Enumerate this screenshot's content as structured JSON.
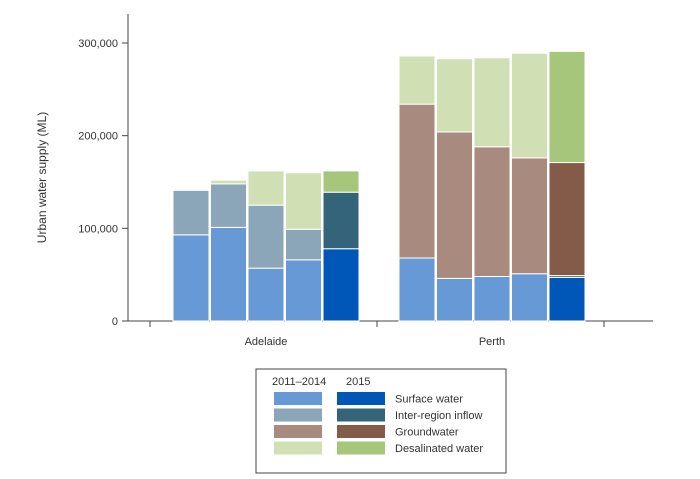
{
  "chart_data": {
    "type": "bar",
    "stacked": true,
    "ylabel": "Urban water supply (ML)",
    "ylim": [
      0,
      300000
    ],
    "yticks": [
      0,
      100000,
      200000,
      300000
    ],
    "ytick_labels": [
      "0",
      "100,000",
      "200,000",
      "300,000"
    ],
    "groups": [
      {
        "label": "Adelaide",
        "bars": [
          {
            "period": "2011–2014",
            "surface": 93000,
            "inter_region": 48000,
            "ground": 0,
            "desal": 0
          },
          {
            "period": "2011–2014",
            "surface": 101000,
            "inter_region": 47000,
            "ground": 0,
            "desal": 4000
          },
          {
            "period": "2011–2014",
            "surface": 57000,
            "inter_region": 68000,
            "ground": 0,
            "desal": 37000
          },
          {
            "period": "2011–2014",
            "surface": 66000,
            "inter_region": 33000,
            "ground": 0,
            "desal": 61000
          },
          {
            "period": "2015",
            "surface": 78000,
            "inter_region": 61000,
            "ground": 0,
            "desal": 23000
          }
        ]
      },
      {
        "label": "Perth",
        "bars": [
          {
            "period": "2011–2014",
            "surface": 68000,
            "inter_region": 0,
            "ground": 166000,
            "desal": 52000
          },
          {
            "period": "2011–2014",
            "surface": 46000,
            "inter_region": 0,
            "ground": 158000,
            "desal": 79000
          },
          {
            "period": "2011–2014",
            "surface": 48000,
            "inter_region": 0,
            "ground": 140000,
            "desal": 96000
          },
          {
            "period": "2011–2014",
            "surface": 51000,
            "inter_region": 0,
            "ground": 125000,
            "desal": 113000
          },
          {
            "period": "2015",
            "surface": 47000,
            "inter_region": 2000,
            "ground": 122000,
            "desal": 120000
          }
        ]
      }
    ],
    "components": [
      {
        "key": "surface",
        "name": "Surface water",
        "color_2011_2014": "#6699d5",
        "color_2015": "#0057b8"
      },
      {
        "key": "inter_region",
        "name": "Inter-region inflow",
        "color_2011_2014": "#8ba6b8",
        "color_2015": "#336479"
      },
      {
        "key": "ground",
        "name": "Groundwater",
        "color_2011_2014": "#a98a7e",
        "color_2015": "#845a48"
      },
      {
        "key": "desal",
        "name": "Desalinated water",
        "color_2011_2014": "#d0e0b4",
        "color_2015": "#a6c67c"
      }
    ],
    "legend": {
      "placement": "bottom",
      "col_headers": [
        "2011–2014",
        "2015"
      ]
    }
  }
}
